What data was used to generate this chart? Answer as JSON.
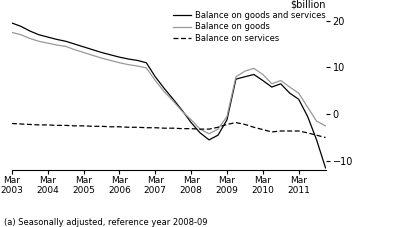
{
  "footnote": "(a) Seasonally adjusted, reference year 2008-09",
  "ylabel": "$billion",
  "ylim": [
    -12,
    22
  ],
  "yticks": [
    -10,
    0,
    10,
    20
  ],
  "x_labels": [
    "Mar\n2003",
    "Mar\n2004",
    "Mar\n2005",
    "Mar\n2006",
    "Mar\n2007",
    "Mar\n2008",
    "Mar\n2009",
    "Mar\n2010",
    "Mar\n2011"
  ],
  "x_tick_positions": [
    0,
    4,
    8,
    12,
    16,
    20,
    24,
    28,
    32
  ],
  "legend": [
    {
      "label": "Balance on goods and services",
      "color": "#000000",
      "linestyle": "solid"
    },
    {
      "label": "Balance on goods",
      "color": "#999999",
      "linestyle": "solid"
    },
    {
      "label": "Balance on services",
      "color": "#000000",
      "linestyle": "dashed"
    }
  ],
  "goods_and_services": [
    19.5,
    18.8,
    17.8,
    17.0,
    16.5,
    16.0,
    15.6,
    15.0,
    14.4,
    13.8,
    13.2,
    12.7,
    12.2,
    11.8,
    11.5,
    11.0,
    8.0,
    5.5,
    3.2,
    0.8,
    -1.8,
    -4.0,
    -5.5,
    -4.5,
    -1.2,
    7.5,
    8.0,
    8.5,
    7.2,
    5.8,
    6.5,
    4.5,
    3.2,
    -0.5,
    -5.5,
    -11.5
  ],
  "goods": [
    17.5,
    17.0,
    16.2,
    15.6,
    15.2,
    14.8,
    14.5,
    13.8,
    13.2,
    12.6,
    12.0,
    11.5,
    11.0,
    10.6,
    10.3,
    9.9,
    7.2,
    4.8,
    2.8,
    0.6,
    -1.2,
    -3.2,
    -4.2,
    -3.2,
    -0.5,
    8.0,
    9.2,
    9.8,
    8.5,
    6.5,
    7.2,
    5.8,
    4.5,
    1.5,
    -1.5,
    -2.5
  ],
  "services": [
    -2.0,
    -2.1,
    -2.2,
    -2.3,
    -2.3,
    -2.4,
    -2.4,
    -2.5,
    -2.5,
    -2.6,
    -2.6,
    -2.7,
    -2.7,
    -2.8,
    -2.8,
    -2.9,
    -2.9,
    -3.0,
    -3.0,
    -3.1,
    -3.1,
    -3.2,
    -3.2,
    -2.8,
    -2.2,
    -1.8,
    -2.2,
    -2.8,
    -3.3,
    -3.8,
    -3.6,
    -3.6,
    -3.6,
    -4.0,
    -4.5,
    -5.0
  ]
}
